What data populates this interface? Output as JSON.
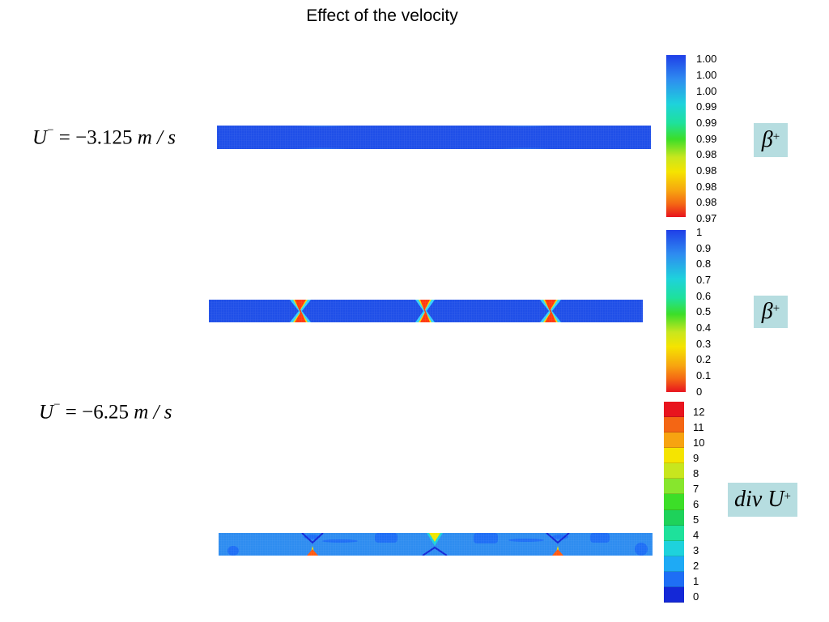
{
  "title": "Effect of the velocity",
  "formulas": [
    {
      "lhs": "U",
      "sup": "−",
      "rhs": " = −3.125 ",
      "unit": "m / s"
    },
    {
      "lhs": "U",
      "sup": "−",
      "rhs": " = −6.25 ",
      "unit": "m / s"
    }
  ],
  "tags": [
    {
      "symbol": "β",
      "sup": "+"
    },
    {
      "symbol": "β",
      "sup": "+"
    },
    {
      "symbol": "div U",
      "sup": "+"
    }
  ],
  "colorbars": [
    {
      "type": "continuous",
      "ticks": [
        "1.00",
        "1.00",
        "1.00",
        "0.99",
        "0.99",
        "0.99",
        "0.98",
        "0.98",
        "0.98",
        "0.98",
        "0.97"
      ]
    },
    {
      "type": "continuous",
      "ticks": [
        "1",
        "0.9",
        "0.8",
        "0.7",
        "0.6",
        "0.5",
        "0.4",
        "0.3",
        "0.2",
        "0.1",
        "0"
      ]
    },
    {
      "type": "discrete",
      "ticks": [
        "12",
        "11",
        "10",
        "9",
        "8",
        "7",
        "6",
        "5",
        "4",
        "3",
        "2",
        "1",
        "0"
      ],
      "colors": [
        "#e8141e",
        "#f46614",
        "#f7a310",
        "#f5e400",
        "#c8e61e",
        "#87e62d",
        "#3cde28",
        "#1ed25a",
        "#1ee19b",
        "#1ed2dc",
        "#1eaaf5",
        "#1e6ef5",
        "#1428d7"
      ]
    }
  ]
}
